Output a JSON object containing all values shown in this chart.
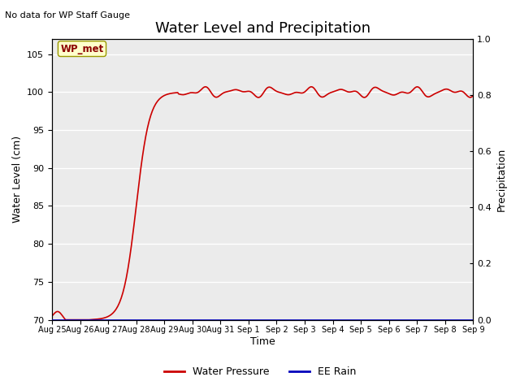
{
  "title": "Water Level and Precipitation",
  "top_left_text": "No data for WP Staff Gauge",
  "xlabel": "Time",
  "ylabel_left": "Water Level (cm)",
  "ylabel_right": "Precipitation",
  "annotation_box": "WP_met",
  "ylim_left": [
    70,
    107
  ],
  "ylim_right": [
    0.0,
    1.0
  ],
  "yticks_left": [
    70,
    75,
    80,
    85,
    90,
    95,
    100,
    105
  ],
  "yticks_right": [
    0.0,
    0.2,
    0.4,
    0.6,
    0.8,
    1.0
  ],
  "x_tick_labels": [
    "Aug 25",
    "Aug 26",
    "Aug 27",
    "Aug 28",
    "Aug 29",
    "Aug 30",
    "Aug 31",
    "Sep 1",
    "Sep 2",
    "Sep 3",
    "Sep 4",
    "Sep 5",
    "Sep 6",
    "Sep 7",
    "Sep 8",
    "Sep 9"
  ],
  "line_color_water": "#cc0000",
  "line_color_rain": "#0000bb",
  "legend_labels": [
    "Water Pressure",
    "EE Rain"
  ],
  "background_color": "#ebebeb",
  "grid_color": "#ffffff",
  "title_fontsize": 13,
  "axis_label_fontsize": 9,
  "tick_fontsize": 8,
  "figsize": [
    6.4,
    4.8
  ],
  "dpi": 100
}
